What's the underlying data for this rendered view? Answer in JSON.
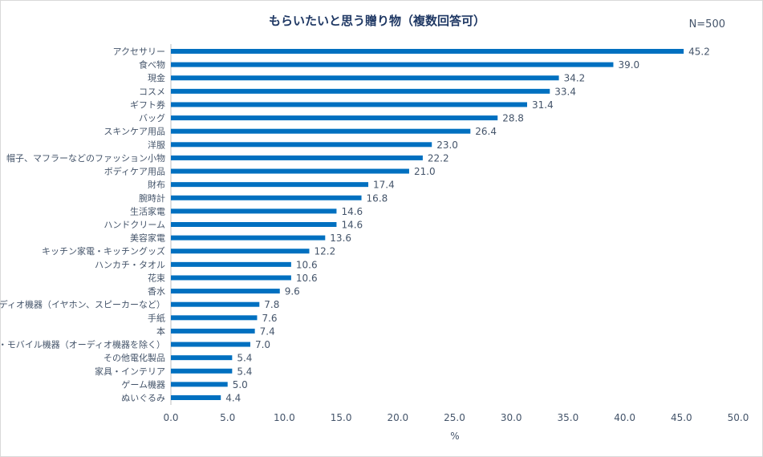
{
  "chart_data": {
    "type": "bar",
    "orientation": "horizontal",
    "title": "もらいたいと思う贈り物（複数回答可）",
    "annotation": "N=500",
    "xlabel": "%",
    "xlim": [
      0,
      50
    ],
    "xticks": [
      "0.0",
      "5.0",
      "10.0",
      "15.0",
      "20.0",
      "25.0",
      "30.0",
      "35.0",
      "40.0",
      "45.0",
      "50.0"
    ],
    "grid": false,
    "bar_color": "#0070c0",
    "text_color": "#44546a",
    "categories": [
      "アクセサリー",
      "食べ物",
      "現金",
      "コスメ",
      "ギフト券",
      "バッグ",
      "スキンケア用品",
      "洋服",
      "帽子、マフラーなどのファッション小物",
      "ボディケア用品",
      "財布",
      "腕時計",
      "生活家電",
      "ハンドクリーム",
      "美容家電",
      "キッチン家電・キッチングッズ",
      "ハンカチ・タオル",
      "花束",
      "香水",
      "オーディオ機器（イヤホン、スピーカーなど）",
      "手紙",
      "本",
      "PC・モバイル機器（オーディオ機器を除く）",
      "その他電化製品",
      "家具・インテリア",
      "ゲーム機器",
      "ぬいぐるみ"
    ],
    "values": [
      45.2,
      39.0,
      34.2,
      33.4,
      31.4,
      28.8,
      26.4,
      23.0,
      22.2,
      21.0,
      17.4,
      16.8,
      14.6,
      14.6,
      13.6,
      12.2,
      10.6,
      10.6,
      9.6,
      7.8,
      7.6,
      7.4,
      7.0,
      5.4,
      5.4,
      5.0,
      4.4
    ]
  }
}
